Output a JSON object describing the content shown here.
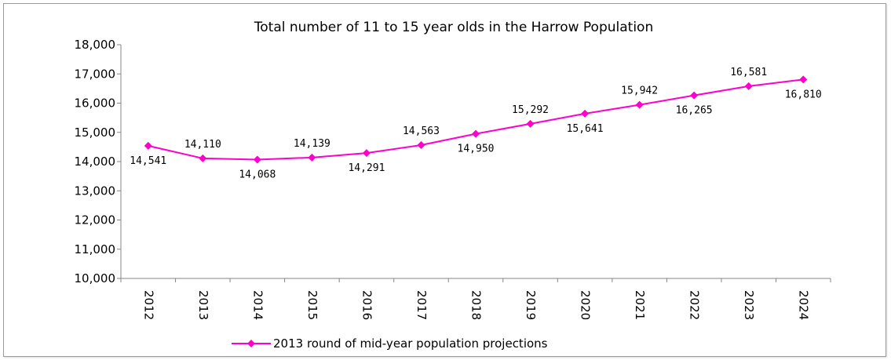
{
  "chart_data": {
    "type": "line",
    "title": "Total number of 11 to 15 year olds in the Harrow Population",
    "xlabel": "",
    "ylabel": "",
    "ylim": [
      10000,
      18000
    ],
    "ytick_step": 1000,
    "yticks": [
      "10,000",
      "11,000",
      "12,000",
      "13,000",
      "14,000",
      "15,000",
      "16,000",
      "17,000",
      "18,000"
    ],
    "categories": [
      "2012",
      "2013",
      "2014",
      "2015",
      "2016",
      "2017",
      "2018",
      "2019",
      "2020",
      "2021",
      "2022",
      "2023",
      "2024"
    ],
    "series": [
      {
        "name": "2013 round of mid-year population projections",
        "color": "#ff00cc",
        "marker": "diamond",
        "values": [
          14541,
          14110,
          14068,
          14139,
          14291,
          14563,
          14950,
          15292,
          15641,
          15942,
          16265,
          16581,
          16810
        ],
        "data_labels": [
          "14,541",
          "14,110",
          "14,068",
          "14,139",
          "14,291",
          "14,563",
          "14,950",
          "15,292",
          "15,641",
          "15,942",
          "16,265",
          "16,581",
          "16,810"
        ],
        "label_positions": [
          "below",
          "above",
          "below",
          "above",
          "below",
          "above",
          "below",
          "above",
          "below",
          "above",
          "below",
          "above",
          "below"
        ]
      }
    ],
    "grid": false,
    "legend_position": "bottom"
  }
}
